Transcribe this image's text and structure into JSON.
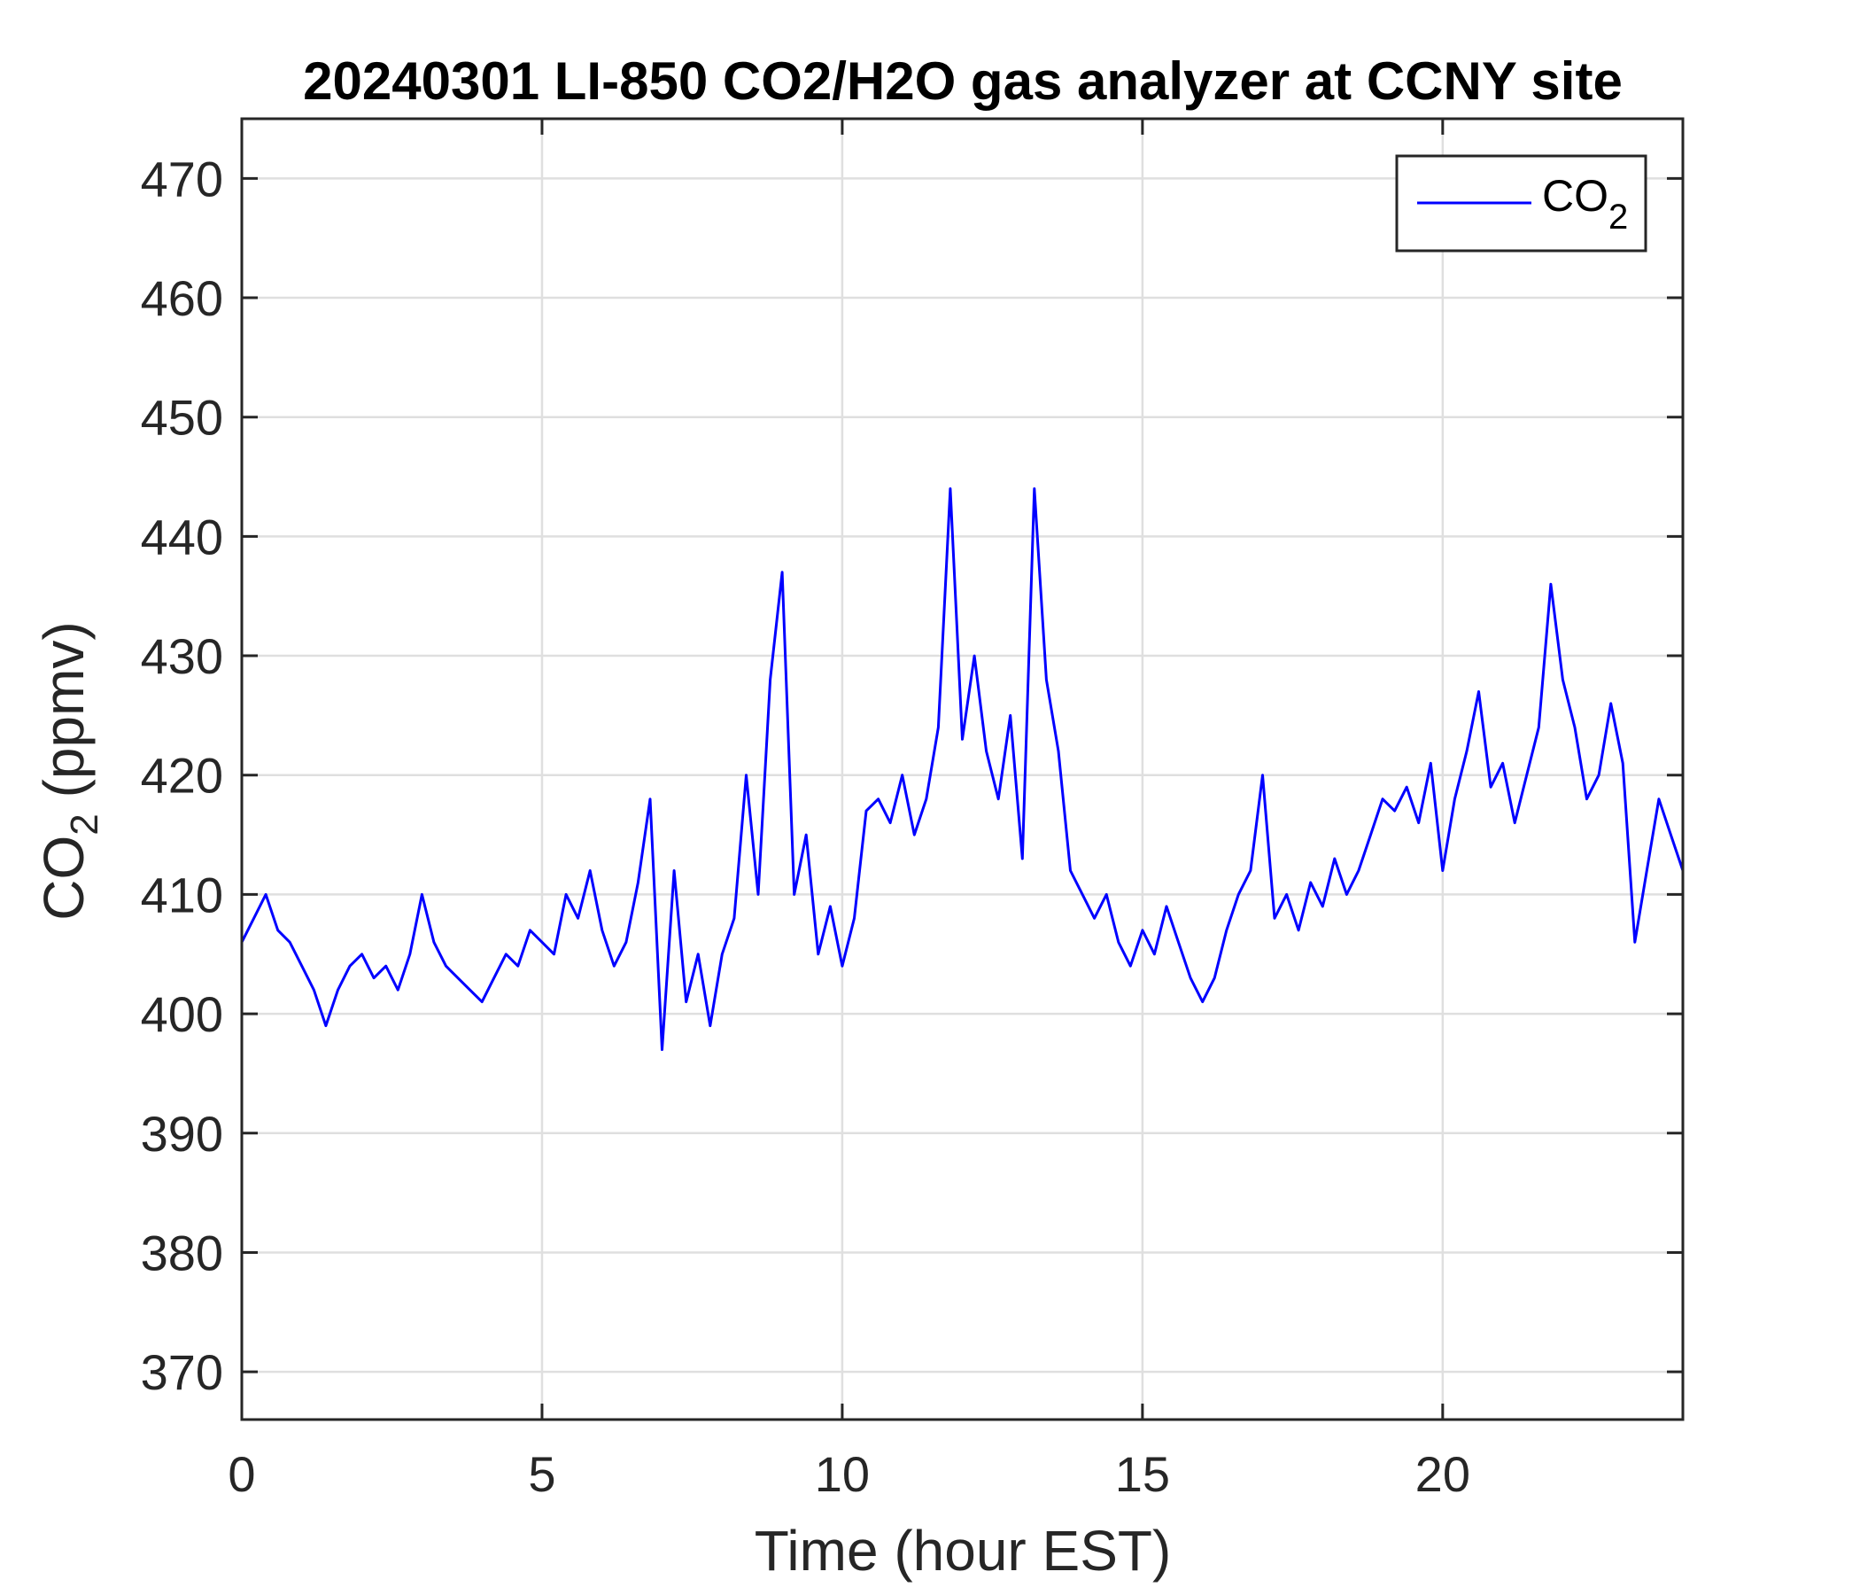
{
  "chart_data": {
    "type": "line",
    "title": "20240301 LI-850 CO2/H2O gas analyzer at CCNY site",
    "xlabel": "Time (hour EST)",
    "ylabel_main": "CO",
    "ylabel_sub": "2",
    "ylabel_tail": " (ppmv)",
    "xlim": [
      0,
      24
    ],
    "ylim": [
      366,
      475
    ],
    "xticks": [
      0,
      5,
      10,
      15,
      20
    ],
    "yticks": [
      370,
      380,
      390,
      400,
      410,
      420,
      430,
      440,
      450,
      460,
      470
    ],
    "grid": true,
    "legend": {
      "placement": "top-right",
      "label_main": "CO",
      "label_sub": "2"
    },
    "series": [
      {
        "name": "CO2",
        "color": "#0000ff",
        "x": [
          0,
          0.2,
          0.4,
          0.6,
          0.8,
          1.0,
          1.2,
          1.4,
          1.6,
          1.8,
          2.0,
          2.2,
          2.4,
          2.6,
          2.8,
          3.0,
          3.2,
          3.4,
          3.6,
          3.8,
          4.0,
          4.2,
          4.4,
          4.6,
          4.8,
          5.0,
          5.2,
          5.4,
          5.6,
          5.8,
          6.0,
          6.2,
          6.4,
          6.6,
          6.8,
          7.0,
          7.2,
          7.4,
          7.6,
          7.8,
          8.0,
          8.2,
          8.4,
          8.6,
          8.8,
          9.0,
          9.2,
          9.4,
          9.6,
          9.8,
          10.0,
          10.2,
          10.4,
          10.6,
          10.8,
          11.0,
          11.2,
          11.4,
          11.6,
          11.8,
          12.0,
          12.2,
          12.4,
          12.6,
          12.8,
          13.0,
          13.2,
          13.4,
          13.6,
          13.8,
          14.0,
          14.2,
          14.4,
          14.6,
          14.8,
          15.0,
          15.2,
          15.4,
          15.6,
          15.8,
          16.0,
          16.2,
          16.4,
          16.6,
          16.8,
          17.0,
          17.2,
          17.4,
          17.6,
          17.8,
          18.0,
          18.2,
          18.4,
          18.6,
          18.8,
          19.0,
          19.2,
          19.4,
          19.6,
          19.8,
          20.0,
          20.2,
          20.4,
          20.6,
          20.8,
          21.0,
          21.2,
          21.4,
          21.6,
          21.8,
          22.0,
          22.2,
          22.4,
          22.6,
          22.8,
          23.0,
          23.2,
          23.4,
          23.6,
          23.8,
          24.0
        ],
        "y": [
          406,
          408,
          410,
          407,
          406,
          404,
          402,
          399,
          402,
          404,
          405,
          403,
          404,
          402,
          405,
          410,
          406,
          404,
          403,
          402,
          401,
          403,
          405,
          404,
          407,
          406,
          405,
          410,
          408,
          412,
          407,
          404,
          406,
          411,
          418,
          397,
          412,
          401,
          405,
          399,
          405,
          408,
          420,
          410,
          428,
          437,
          410,
          415,
          405,
          409,
          404,
          408,
          417,
          418,
          416,
          420,
          415,
          418,
          424,
          444,
          423,
          430,
          422,
          418,
          425,
          413,
          444,
          428,
          422,
          412,
          410,
          408,
          410,
          406,
          404,
          407,
          405,
          409,
          406,
          403,
          401,
          403,
          407,
          410,
          412,
          420,
          408,
          410,
          407,
          411,
          409,
          413,
          410,
          412,
          415,
          418,
          417,
          419,
          416,
          421,
          412,
          418,
          422,
          427,
          419,
          421,
          416,
          420,
          424,
          436,
          428,
          424,
          418,
          420,
          426,
          421,
          406,
          412,
          418,
          415,
          412
        ]
      }
    ]
  }
}
